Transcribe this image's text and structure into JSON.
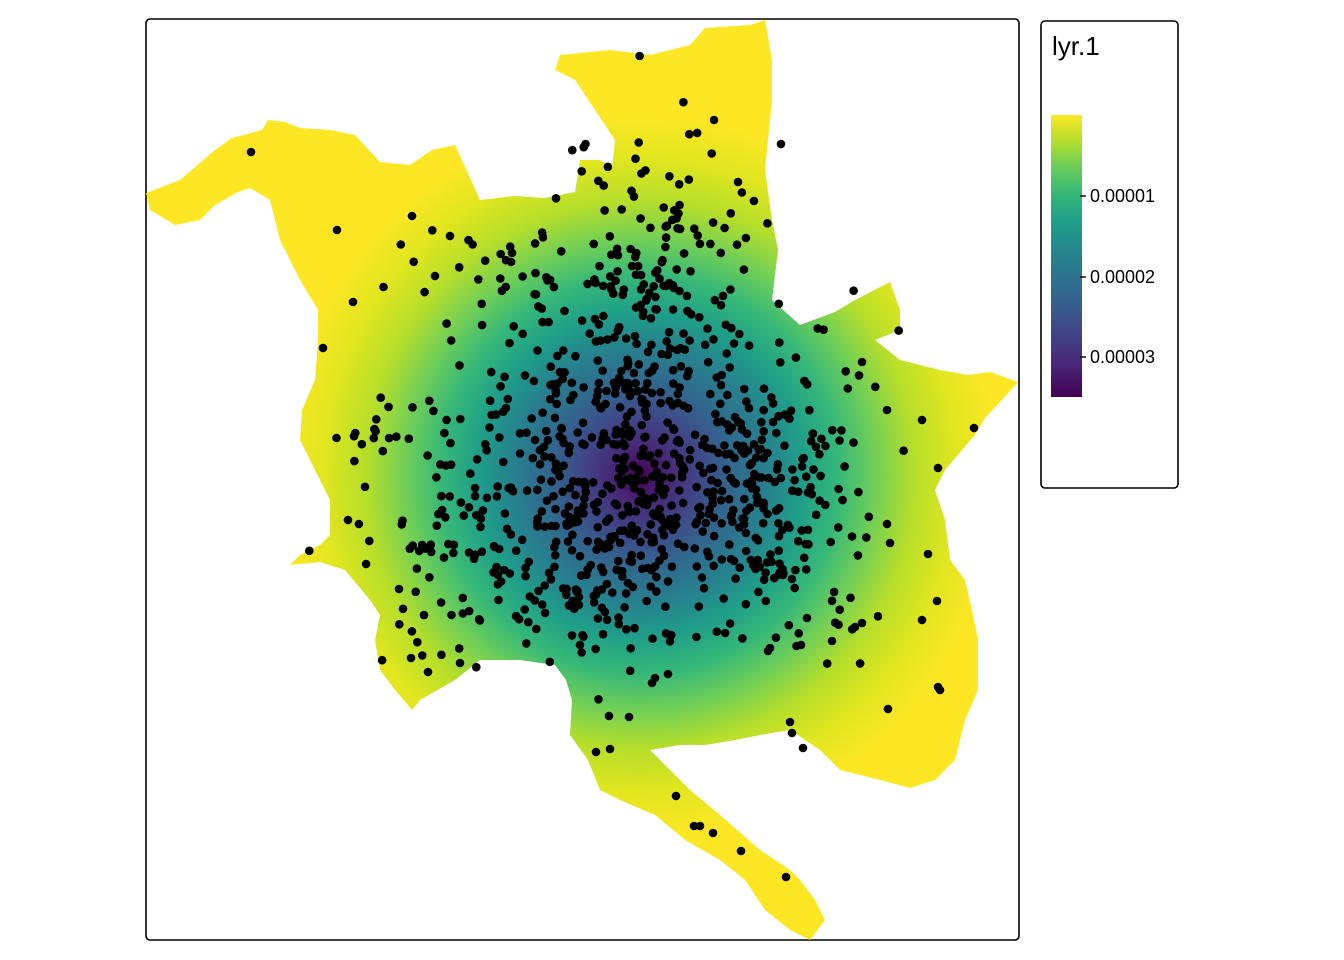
{
  "legend": {
    "title": "lyr.1",
    "ticks": [
      "0.00001",
      "0.00002",
      "0.00003"
    ],
    "colors": {
      "low": "#fde725",
      "mid_low": "#8fd744",
      "mid": "#35b779",
      "mid_high": "#21908c",
      "high": "#31688e",
      "higher": "#443a83",
      "max": "#440154"
    }
  },
  "map": {
    "point_color": "#000000",
    "density_peak_fraction": 0.95
  }
}
